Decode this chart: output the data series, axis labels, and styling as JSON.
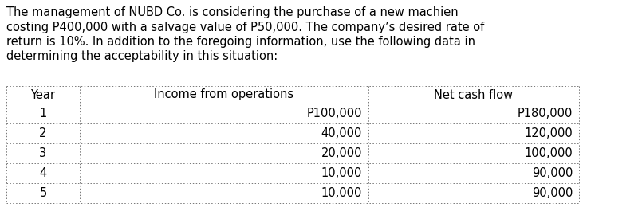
{
  "paragraph": "The management of NUBD Co. is considering the purchase of a new machien\ncosting P400,000 with a salvage value of P50,000. The company’s desired rate of\nreturn is 10%. In addition to the foregoing information, use the following data in\ndetermining the acceptability in this situation:",
  "headers": [
    "Year",
    "Income from operations",
    "Net cash flow"
  ],
  "rows": [
    [
      "1",
      "P100,000",
      "P180,000"
    ],
    [
      "2",
      "40,000",
      "120,000"
    ],
    [
      "3",
      "20,000",
      "100,000"
    ],
    [
      "4",
      "10,000",
      "90,000"
    ],
    [
      "5",
      "10,000",
      "90,000"
    ]
  ],
  "bg_color": "#ffffff",
  "text_color": "#000000",
  "font_size": 10.5,
  "table_font_size": 10.5,
  "line_color": "#777777",
  "fig_width": 8.0,
  "fig_height": 2.75
}
